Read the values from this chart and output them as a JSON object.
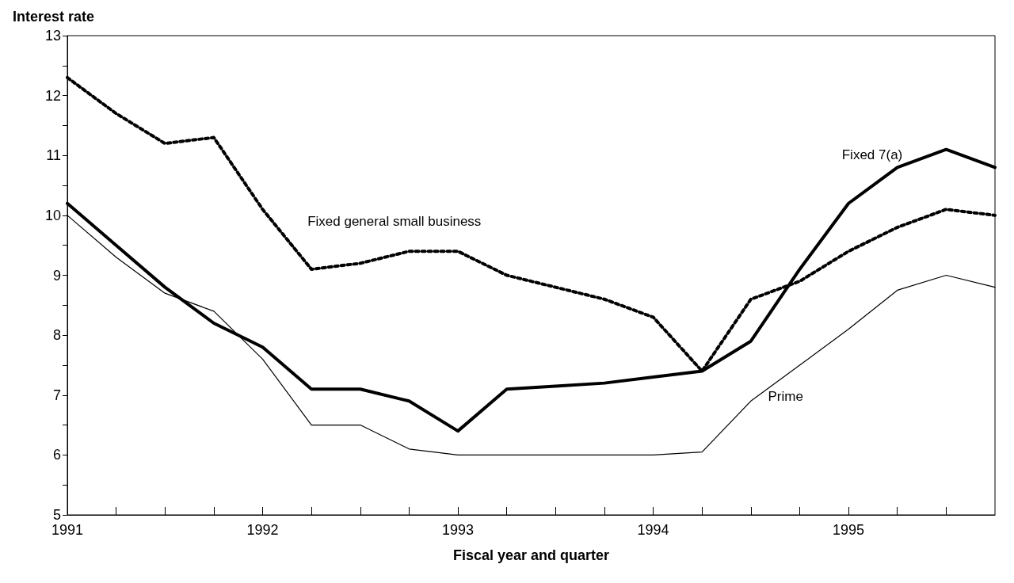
{
  "chart_data": {
    "type": "line",
    "ylabel": "Interest rate",
    "xlabel": "Fiscal year and quarter",
    "x": [
      1991,
      1991.25,
      1991.5,
      1991.75,
      1992,
      1992.25,
      1992.5,
      1992.75,
      1993,
      1993.25,
      1993.5,
      1993.75,
      1994,
      1994.25,
      1994.5,
      1994.75,
      1995,
      1995.25,
      1995.5,
      1995.75
    ],
    "series": [
      {
        "name": "Fixed general small business",
        "color": "#000000",
        "line_style": "dotted",
        "values": [
          12.3,
          11.7,
          11.2,
          11.3,
          10.1,
          9.1,
          9.2,
          9.4,
          9.4,
          9.0,
          8.8,
          8.6,
          8.3,
          7.4,
          8.6,
          8.9,
          9.4,
          9.8,
          10.1,
          10.0
        ]
      },
      {
        "name": "Fixed 7(a)",
        "color": "#000000",
        "line_style": "solid",
        "values": [
          10.2,
          9.5,
          8.8,
          8.2,
          7.8,
          7.1,
          7.1,
          6.9,
          6.4,
          7.1,
          7.15,
          7.2,
          7.3,
          7.4,
          7.9,
          9.1,
          10.2,
          10.8,
          11.1,
          10.8
        ]
      },
      {
        "name": "Prime",
        "color": "#000000",
        "line_style": "solid",
        "values": [
          10.0,
          9.3,
          8.7,
          8.4,
          7.6,
          6.5,
          6.5,
          6.1,
          6.0,
          6.0,
          6.0,
          6.0,
          6.0,
          6.05,
          6.9,
          7.5,
          8.1,
          8.75,
          9.0,
          8.8
        ]
      }
    ],
    "xlim": [
      1991,
      1995.75
    ],
    "xticks": [
      1991,
      {
        "value": 1991.25,
        "label": null
      },
      {
        "value": 1991.5,
        "label": null
      },
      {
        "value": 1991.75,
        "label": null
      },
      1992,
      {
        "value": 1992.25,
        "label": null
      },
      {
        "value": 1992.5,
        "label": null
      },
      {
        "value": 1992.75,
        "label": null
      },
      1993,
      {
        "value": 1993.25,
        "label": null
      },
      {
        "value": 1993.5,
        "label": null
      },
      {
        "value": 1993.75,
        "label": null
      },
      1994,
      {
        "value": 1994.25,
        "label": null
      },
      {
        "value": 1994.5,
        "label": null
      },
      {
        "value": 1994.75,
        "label": null
      },
      1995,
      {
        "value": 1995.25,
        "label": null
      },
      {
        "value": 1995.5,
        "label": null
      }
    ],
    "ylim": [
      5,
      13
    ],
    "yticks": [
      5,
      {
        "value": 5.5,
        "label": null
      },
      6,
      {
        "value": 6.5,
        "label": null
      },
      7,
      {
        "value": 7.5,
        "label": null
      },
      8,
      {
        "value": 8.5,
        "label": null
      },
      9,
      {
        "value": 9.5,
        "label": null
      },
      10,
      {
        "value": 10.5,
        "label": null
      },
      11,
      {
        "value": 11.5,
        "label": null
      },
      12,
      {
        "value": 12.5,
        "label": null
      },
      13
    ],
    "grid": false,
    "legend": false,
    "marker": "none"
  }
}
